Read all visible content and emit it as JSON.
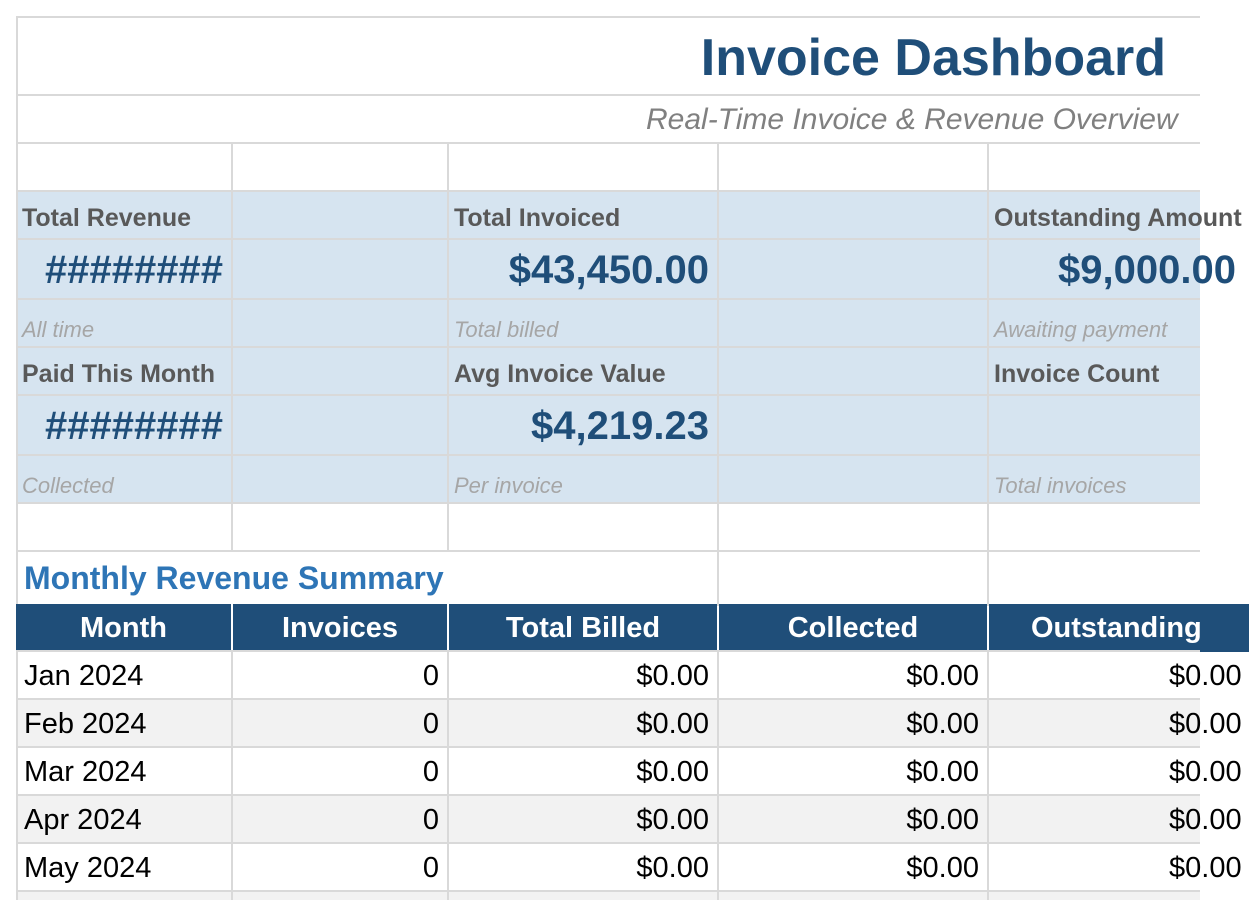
{
  "header": {
    "title": "Invoice Dashboard",
    "subtitle": "Real-Time Invoice & Revenue Overview"
  },
  "kpis": [
    {
      "label": "Total Revenue",
      "value": "########",
      "sub": "All time"
    },
    {
      "label": "Total Invoiced",
      "value": "$43,450.00",
      "sub": "Total billed"
    },
    {
      "label": "Outstanding Amount",
      "value": "$9,000.00",
      "sub": "Awaiting payment"
    },
    {
      "label": "Paid This Month",
      "value": "########",
      "sub": "Collected"
    },
    {
      "label": "Avg Invoice Value",
      "value": "$4,219.23",
      "sub": "Per invoice"
    },
    {
      "label": "Invoice Count",
      "value": "",
      "sub": "Total invoices"
    }
  ],
  "monthly": {
    "title": "Monthly Revenue Summary",
    "columns": [
      "Month",
      "Invoices",
      "Total Billed",
      "Collected",
      "Outstanding"
    ],
    "rows": [
      [
        "Jan 2024",
        "0",
        "$0.00",
        "$0.00",
        "$0.00"
      ],
      [
        "Feb 2024",
        "0",
        "$0.00",
        "$0.00",
        "$0.00"
      ],
      [
        "Mar 2024",
        "0",
        "$0.00",
        "$0.00",
        "$0.00"
      ],
      [
        "Apr 2024",
        "0",
        "$0.00",
        "$0.00",
        "$0.00"
      ],
      [
        "May 2024",
        "0",
        "$0.00",
        "$0.00",
        "$0.00"
      ]
    ]
  },
  "colors": {
    "title": "#1f4e79",
    "kpi_band": "#d6e4f0",
    "header_fill": "#1f4e79",
    "section_title": "#2e75b6",
    "alt_row": "#f2f2f2"
  }
}
